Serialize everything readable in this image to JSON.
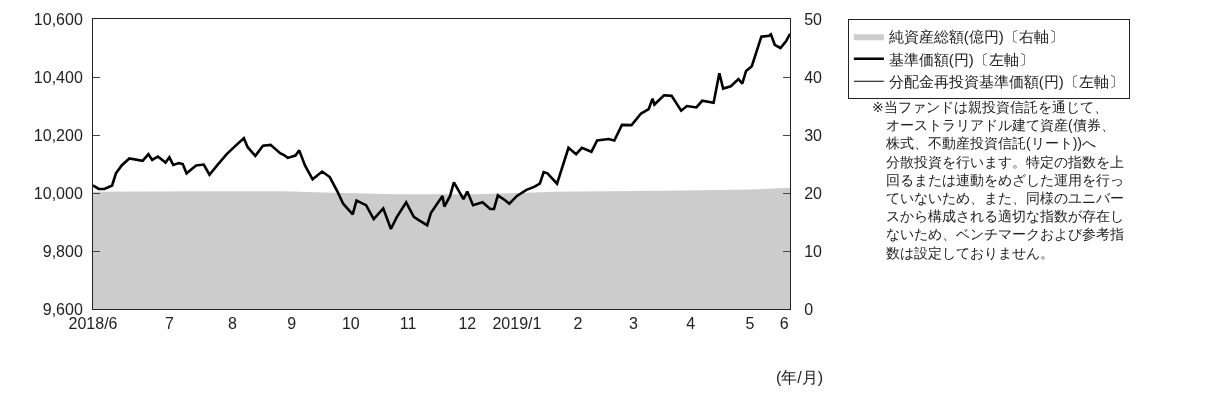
{
  "chart_data": {
    "type": "line",
    "x": [
      "2018-06-18",
      "2018-06-21",
      "2018-06-24",
      "2018-06-28",
      "2018-06-30",
      "2018-07-03",
      "2018-07-07",
      "2018-07-14",
      "2018-07-17",
      "2018-07-19",
      "2018-07-22",
      "2018-07-26",
      "2018-07-28",
      "2018-07-30",
      "2018-08-02",
      "2018-08-04",
      "2018-08-06",
      "2018-08-11",
      "2018-08-15",
      "2018-08-18",
      "2018-08-22",
      "2018-08-27",
      "2018-09-01",
      "2018-09-05",
      "2018-09-07",
      "2018-09-11",
      "2018-09-15",
      "2018-09-19",
      "2018-09-24",
      "2018-09-26",
      "2018-09-28",
      "2018-10-02",
      "2018-10-04",
      "2018-10-07",
      "2018-10-11",
      "2018-10-16",
      "2018-10-20",
      "2018-10-24",
      "2018-10-27",
      "2018-11-01",
      "2018-11-03",
      "2018-11-08",
      "2018-11-12",
      "2018-11-17",
      "2018-11-21",
      "2018-11-24",
      "2018-11-29",
      "2018-12-03",
      "2018-12-06",
      "2018-12-10",
      "2018-12-12",
      "2018-12-18",
      "2018-12-19",
      "2018-12-22",
      "2018-12-24",
      "2018-12-29",
      "2018-12-31",
      "2019-01-03",
      "2019-01-08",
      "2019-01-12",
      "2019-01-14",
      "2019-01-16",
      "2019-01-20",
      "2019-01-22",
      "2019-01-26",
      "2019-01-31",
      "2019-02-04",
      "2019-02-07",
      "2019-02-09",
      "2019-02-11",
      "2019-02-16",
      "2019-02-22",
      "2019-02-26",
      "2019-03-01",
      "2019-03-06",
      "2019-03-09",
      "2019-03-15",
      "2019-03-18",
      "2019-03-22",
      "2019-03-27",
      "2019-04-01",
      "2019-04-05",
      "2019-04-07",
      "2019-04-08",
      "2019-04-13",
      "2019-04-17",
      "2019-04-22",
      "2019-04-25",
      "2019-04-30",
      "2019-05-03",
      "2019-05-09",
      "2019-05-12",
      "2019-05-14",
      "2019-05-18",
      "2019-05-22",
      "2019-05-24",
      "2019-05-26",
      "2019-05-29",
      "2019-06-03",
      "2019-06-07",
      "2019-06-08",
      "2019-06-10",
      "2019-06-13",
      "2019-06-16",
      "2019-06-18"
    ],
    "series": [
      {
        "name": "純資産総額(億円)〔右軸〕",
        "type": "area",
        "axis": "y2",
        "color": "#cccccc",
        "x": [
          "2018-06-18",
          "2018-08-17",
          "2018-09-26",
          "2018-10-26",
          "2018-11-25",
          "2019-01-04",
          "2019-01-29",
          "2019-02-13",
          "2019-04-14",
          "2019-05-29",
          "2019-06-18"
        ],
        "values": [
          20.2,
          20.3,
          20.3,
          20.0,
          19.8,
          19.8,
          20.0,
          20.2,
          20.4,
          20.6,
          20.9
        ]
      },
      {
        "name": "基準価額(円)〔左軸〕",
        "color": "#000000",
        "values": [
          10026,
          10014,
          10014,
          10026,
          10068,
          10095,
          10119,
          10111,
          10134,
          10114,
          10126,
          10105,
          10123,
          10097,
          10103,
          10100,
          10068,
          10095,
          10098,
          10063,
          10095,
          10134,
          10165,
          10189,
          10158,
          10128,
          10163,
          10166,
          10137,
          10131,
          10121,
          10129,
          10147,
          10095,
          10047,
          10074,
          10055,
          10005,
          9963,
          9926,
          9974,
          9958,
          9910,
          9947,
          9876,
          9916,
          9968,
          9918,
          9905,
          9889,
          9932,
          9990,
          9953,
          9990,
          10037,
          9979,
          10005,
          9958,
          9968,
          9945,
          9945,
          9992,
          9974,
          9963,
          9990,
          10011,
          10021,
          10032,
          10072,
          10068,
          10032,
          10156,
          10134,
          10156,
          10142,
          10181,
          10186,
          10181,
          10235,
          10234,
          10274,
          10289,
          10325,
          10305,
          10337,
          10335,
          10284,
          10300,
          10295,
          10318,
          10311,
          10413,
          10360,
          10368,
          10393,
          10377,
          10421,
          10437,
          10539,
          10542,
          10547,
          10511,
          10500,
          10524,
          10549
        ]
      },
      {
        "name": "分配金再投資基準価額(円)〔左軸〕",
        "color": "#000000",
        "values": [
          null,
          null,
          null,
          null,
          null,
          null,
          null,
          null,
          null,
          null,
          null,
          null,
          null,
          null,
          null,
          null,
          null,
          null,
          null,
          null,
          null,
          null,
          null,
          null,
          null,
          null,
          null,
          null,
          null,
          null,
          null,
          null,
          null,
          null,
          null,
          null,
          null,
          null,
          null,
          null,
          null,
          null,
          null,
          null,
          null,
          null,
          null,
          null,
          null,
          null,
          null,
          null,
          null,
          null,
          null,
          null,
          null,
          null,
          null,
          null,
          null,
          null,
          null,
          null,
          null,
          null,
          null,
          null,
          null,
          null,
          null,
          null,
          null,
          null,
          null,
          null,
          null,
          null,
          null,
          null,
          null,
          null,
          null,
          null,
          null,
          null,
          null,
          null,
          null,
          null,
          null,
          null,
          null,
          null,
          null,
          null,
          null,
          null,
          null,
          null,
          null,
          null,
          null,
          null,
          null
        ]
      }
    ],
    "xlim": [
      "2018-06-18",
      "2019-06-18"
    ],
    "xticks": [
      {
        "value": "2018-06-18",
        "label": "2018/6"
      },
      {
        "value": "2018-07-28",
        "label": "7"
      },
      {
        "value": "2018-08-30",
        "label": "8"
      },
      {
        "value": "2018-09-30",
        "label": "9"
      },
      {
        "value": "2018-10-31",
        "label": "10"
      },
      {
        "value": "2018-11-30",
        "label": "11"
      },
      {
        "value": "2018-12-31",
        "label": "12"
      },
      {
        "value": "2019-01-26",
        "label": "2019/1"
      },
      {
        "value": "2019-02-27",
        "label": "2"
      },
      {
        "value": "2019-03-28",
        "label": "3"
      },
      {
        "value": "2019-04-27",
        "label": "4"
      },
      {
        "value": "2019-05-28",
        "label": "5"
      },
      {
        "value": "2019-06-15",
        "label": "6"
      }
    ],
    "ylim": [
      9600,
      10600
    ],
    "yticks": [
      {
        "value": 9600,
        "label": "9,600"
      },
      {
        "value": 9800,
        "label": "9,800"
      },
      {
        "value": 10000,
        "label": "10,000"
      },
      {
        "value": 10200,
        "label": "10,200"
      },
      {
        "value": 10400,
        "label": "10,400"
      },
      {
        "value": 10600,
        "label": "10,600"
      }
    ],
    "y2lim": [
      0,
      50
    ],
    "y2ticks": [
      0,
      10,
      20,
      30,
      40,
      50
    ],
    "xlabel": "(年/月)",
    "grid": false,
    "legend": "top right",
    "annotations": [
      "※当ファンドは親投資信託を通じて、オーストラリアドル建て資産(債券、株式、不動産投資信託(リート))へ分散投資を行います。特定の指数を上回るまたは連動をめざした運用を行っていないため、また、同様のユニバースから構成される適切な指数が存在しないため、ベンチマークおよび参考指数は設定しておりません。"
    ]
  }
}
